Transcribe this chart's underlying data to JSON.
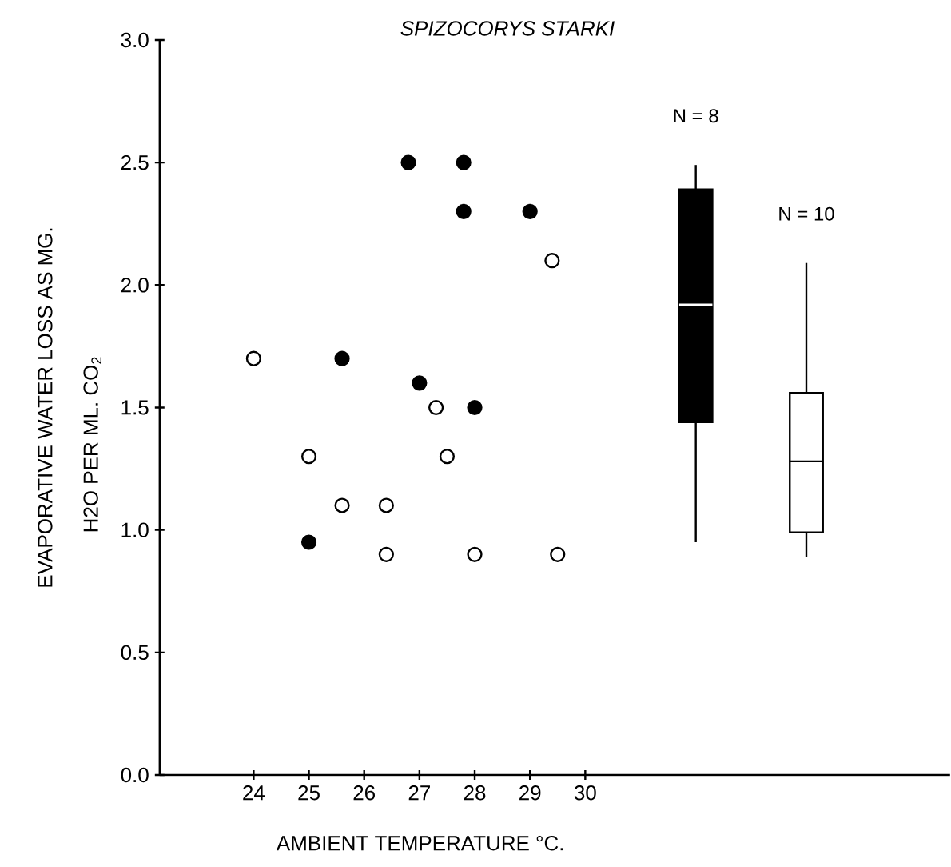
{
  "chart_data": {
    "type": "scatter",
    "title": "SPIZOCORYS STARKI",
    "xlabel": "AMBIENT TEMPERATURE °C.",
    "ylabel": "EVAPORATIVE WATER LOSS AS MG.",
    "xlim": [
      22.3,
      36.6
    ],
    "ylim": [
      0,
      3.0
    ],
    "xticks": [
      24,
      25,
      26,
      27,
      28,
      29,
      30
    ],
    "yticks": [
      {
        "value": 0,
        "label": "0.0"
      },
      0.5,
      {
        "value": 1,
        "label": "1.0"
      },
      1.5,
      {
        "value": 2,
        "label": "2.0"
      },
      2.5,
      {
        "value": 3,
        "label": "3.0"
      }
    ],
    "marker": "circle",
    "grid": false,
    "series": [
      {
        "color": "#000000",
        "x": [
          26.8,
          27.8,
          27.8,
          29.0,
          25.6,
          27.0,
          28.0,
          25.0
        ],
        "values": [
          2.5,
          2.5,
          2.3,
          2.3,
          1.7,
          1.6,
          1.5,
          0.95
        ]
      },
      {
        "color": "#ffffff",
        "x": [
          24.0,
          29.4,
          27.3,
          27.5,
          25.0,
          25.6,
          26.4,
          26.4,
          28.0,
          29.5
        ],
        "values": [
          1.7,
          2.1,
          1.5,
          1.3,
          1.3,
          1.1,
          1.1,
          0.9,
          0.9,
          0.9
        ]
      },
      {
        "type": "box",
        "x": [
          32,
          34
        ],
        "colors": [
          "#000000",
          "#ffffff"
        ],
        "boxes": [
          {
            "low": 0.95,
            "q1": 1.44,
            "median": 1.92,
            "q3": 2.39,
            "high": 2.49
          },
          {
            "low": 0.89,
            "q1": 0.99,
            "median": 1.28,
            "q3": 1.56,
            "high": 2.09
          }
        ]
      }
    ],
    "annotations": [
      "N = 8",
      "N = 10",
      "H2O PER ML. CO$_{2}$"
    ]
  }
}
